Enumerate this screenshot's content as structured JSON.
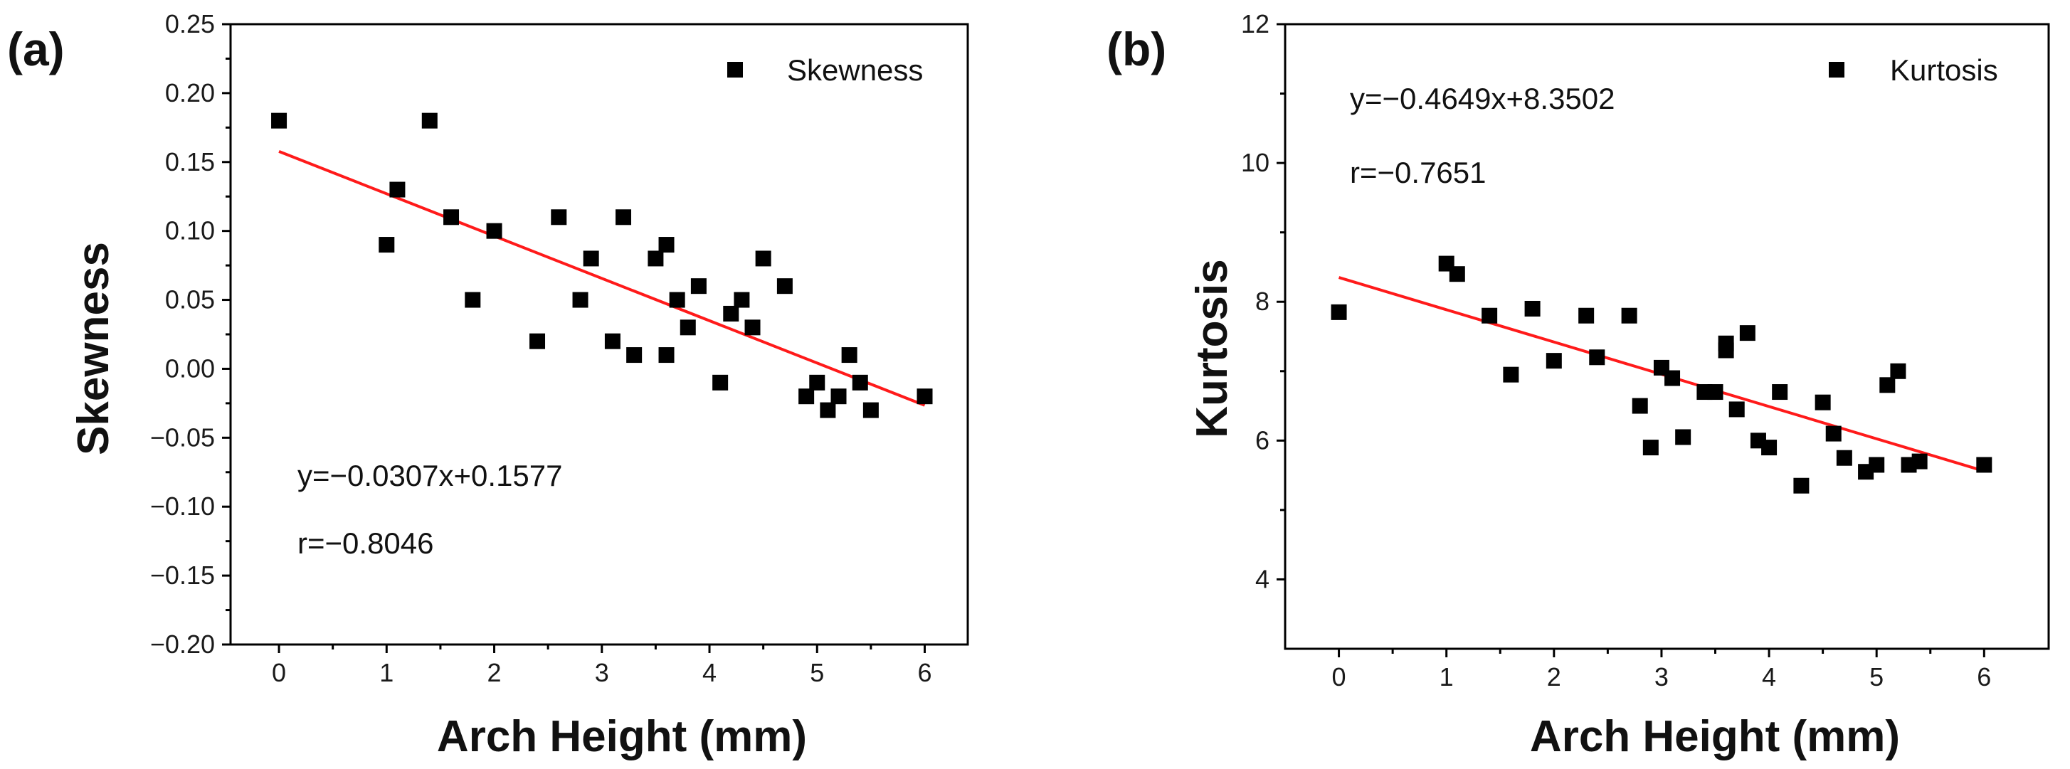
{
  "chart_data": [
    {
      "panel_label": "(a)",
      "type": "scatter",
      "xlabel": "Arch Height (mm)",
      "ylabel": "Skewness",
      "xlim": [
        -0.45,
        6.4
      ],
      "ylim": [
        -0.2,
        0.25
      ],
      "xticks": [
        0,
        1,
        2,
        3,
        4,
        5,
        6
      ],
      "yticks": [
        0.25,
        0.2,
        0.15,
        0.1,
        0.05,
        0.0,
        -0.05,
        -0.1,
        -0.15,
        -0.2
      ],
      "xtick_labels": [
        "0",
        "1",
        "2",
        "3",
        "4",
        "5",
        "6"
      ],
      "ytick_labels": [
        "0.25",
        "0.20",
        "0.15",
        "0.10",
        "0.05",
        "0.00",
        "−0.05",
        "−0.10",
        "−0.15",
        "−0.20"
      ],
      "legend": "Skewness",
      "legend_position": "top-right",
      "equation": "y=−0.0307x+0.1577",
      "r_value": "r=−0.8046",
      "annotation_position": "bottom-left",
      "fit": {
        "slope": -0.0307,
        "intercept": 0.1577,
        "x_range": [
          0,
          6
        ]
      },
      "series": [
        {
          "name": "Skewness",
          "x": [
            0,
            1.0,
            1.1,
            1.4,
            1.6,
            1.8,
            2.0,
            2.4,
            2.6,
            2.8,
            2.9,
            3.1,
            3.2,
            3.3,
            3.5,
            3.6,
            3.6,
            3.7,
            3.8,
            3.9,
            4.1,
            4.2,
            4.3,
            4.4,
            4.5,
            4.7,
            4.9,
            5.0,
            5.1,
            5.2,
            5.3,
            5.4,
            5.5,
            6.0
          ],
          "y": [
            0.18,
            0.09,
            0.13,
            0.18,
            0.11,
            0.05,
            0.1,
            0.02,
            0.11,
            0.05,
            0.08,
            0.02,
            0.11,
            0.01,
            0.08,
            0.09,
            0.01,
            0.05,
            0.03,
            0.06,
            -0.01,
            0.04,
            0.05,
            0.03,
            0.08,
            0.06,
            -0.02,
            -0.01,
            -0.03,
            -0.02,
            0.01,
            -0.01,
            -0.03,
            -0.02
          ]
        }
      ]
    },
    {
      "panel_label": "(b)",
      "type": "scatter",
      "xlabel": "Arch Height (mm)",
      "ylabel": "Kurtosis",
      "xlim": [
        -0.5,
        6.6
      ],
      "ylim": [
        3.0,
        12.0
      ],
      "xticks": [
        0,
        1,
        2,
        3,
        4,
        5,
        6
      ],
      "yticks": [
        12,
        10,
        8,
        6,
        4
      ],
      "xtick_labels": [
        "0",
        "1",
        "2",
        "3",
        "4",
        "5",
        "6"
      ],
      "ytick_labels": [
        "12",
        "10",
        "8",
        "6",
        "4"
      ],
      "legend": "Kurtosis",
      "legend_position": "top-right",
      "equation": "y=−0.4649x+8.3502",
      "r_value": "r=−0.7651",
      "annotation_position": "top-left",
      "fit": {
        "slope": -0.4649,
        "intercept": 8.3502,
        "x_range": [
          0,
          6
        ]
      },
      "series": [
        {
          "name": "Kurtosis",
          "x": [
            0,
            1.0,
            1.1,
            1.4,
            1.6,
            1.8,
            2.0,
            2.3,
            2.4,
            2.7,
            2.8,
            2.9,
            3.0,
            3.1,
            3.2,
            3.4,
            3.5,
            3.6,
            3.6,
            3.7,
            3.8,
            3.9,
            4.0,
            4.1,
            4.3,
            4.5,
            4.6,
            4.7,
            4.9,
            5.0,
            5.1,
            5.2,
            5.3,
            5.4,
            6.0
          ],
          "y": [
            7.85,
            8.55,
            8.4,
            7.8,
            6.95,
            7.9,
            7.15,
            7.8,
            7.2,
            7.8,
            6.5,
            5.9,
            7.05,
            6.9,
            6.05,
            6.7,
            6.7,
            7.3,
            7.4,
            6.45,
            7.55,
            6.0,
            5.9,
            6.7,
            5.35,
            6.55,
            6.1,
            5.75,
            5.55,
            5.65,
            6.8,
            7.0,
            5.65,
            5.7,
            5.65
          ]
        }
      ]
    }
  ]
}
